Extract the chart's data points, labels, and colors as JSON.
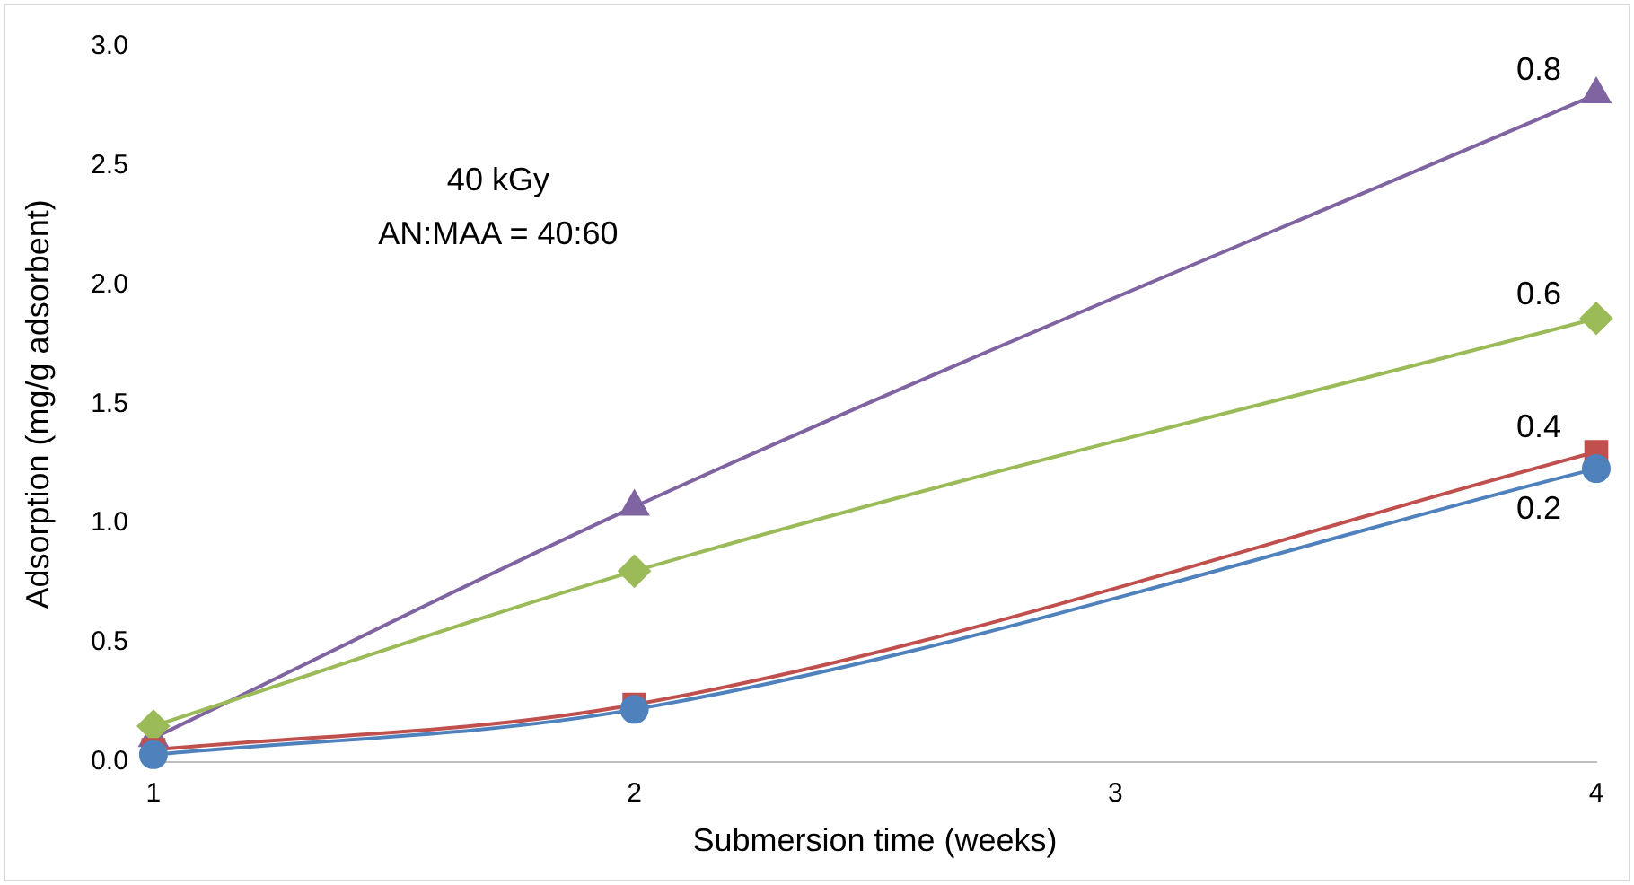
{
  "chart_data": {
    "type": "line",
    "xlabel": "Submersion time (weeks)",
    "ylabel": "Adsorption (mg/g adsorbent)",
    "annotations": [
      "40 kGy",
      "AN:MAA = 40:60"
    ],
    "x": [
      1,
      2,
      4
    ],
    "xlim": [
      1,
      4
    ],
    "xticks": [
      1,
      2,
      3,
      4
    ],
    "ylim": [
      0,
      3
    ],
    "yticks": [
      {
        "value": 0,
        "label": "0.0"
      },
      {
        "value": 0.5,
        "label": "0.5"
      },
      {
        "value": 1,
        "label": "1.0"
      },
      {
        "value": 1.5,
        "label": "1.5"
      },
      {
        "value": 2,
        "label": "2.0"
      },
      {
        "value": 2.5,
        "label": "2.5"
      },
      {
        "value": 3,
        "label": "3.0"
      }
    ],
    "grid": false,
    "legend": false,
    "line_style": "solid",
    "series": [
      {
        "name": "0.2",
        "color": "#4f81bd",
        "marker": "circle",
        "values": [
          0.03,
          0.22,
          1.23
        ]
      },
      {
        "name": "0.4",
        "color": "#c0504d",
        "marker": "square",
        "values": [
          0.05,
          0.24,
          1.3
        ]
      },
      {
        "name": "0.6",
        "color": "#9bbb59",
        "marker": "diamond",
        "values": [
          0.15,
          0.8,
          1.86
        ]
      },
      {
        "name": "0.8",
        "color": "#8064a2",
        "marker": "triangle",
        "values": [
          0.1,
          1.07,
          2.8
        ]
      }
    ]
  }
}
